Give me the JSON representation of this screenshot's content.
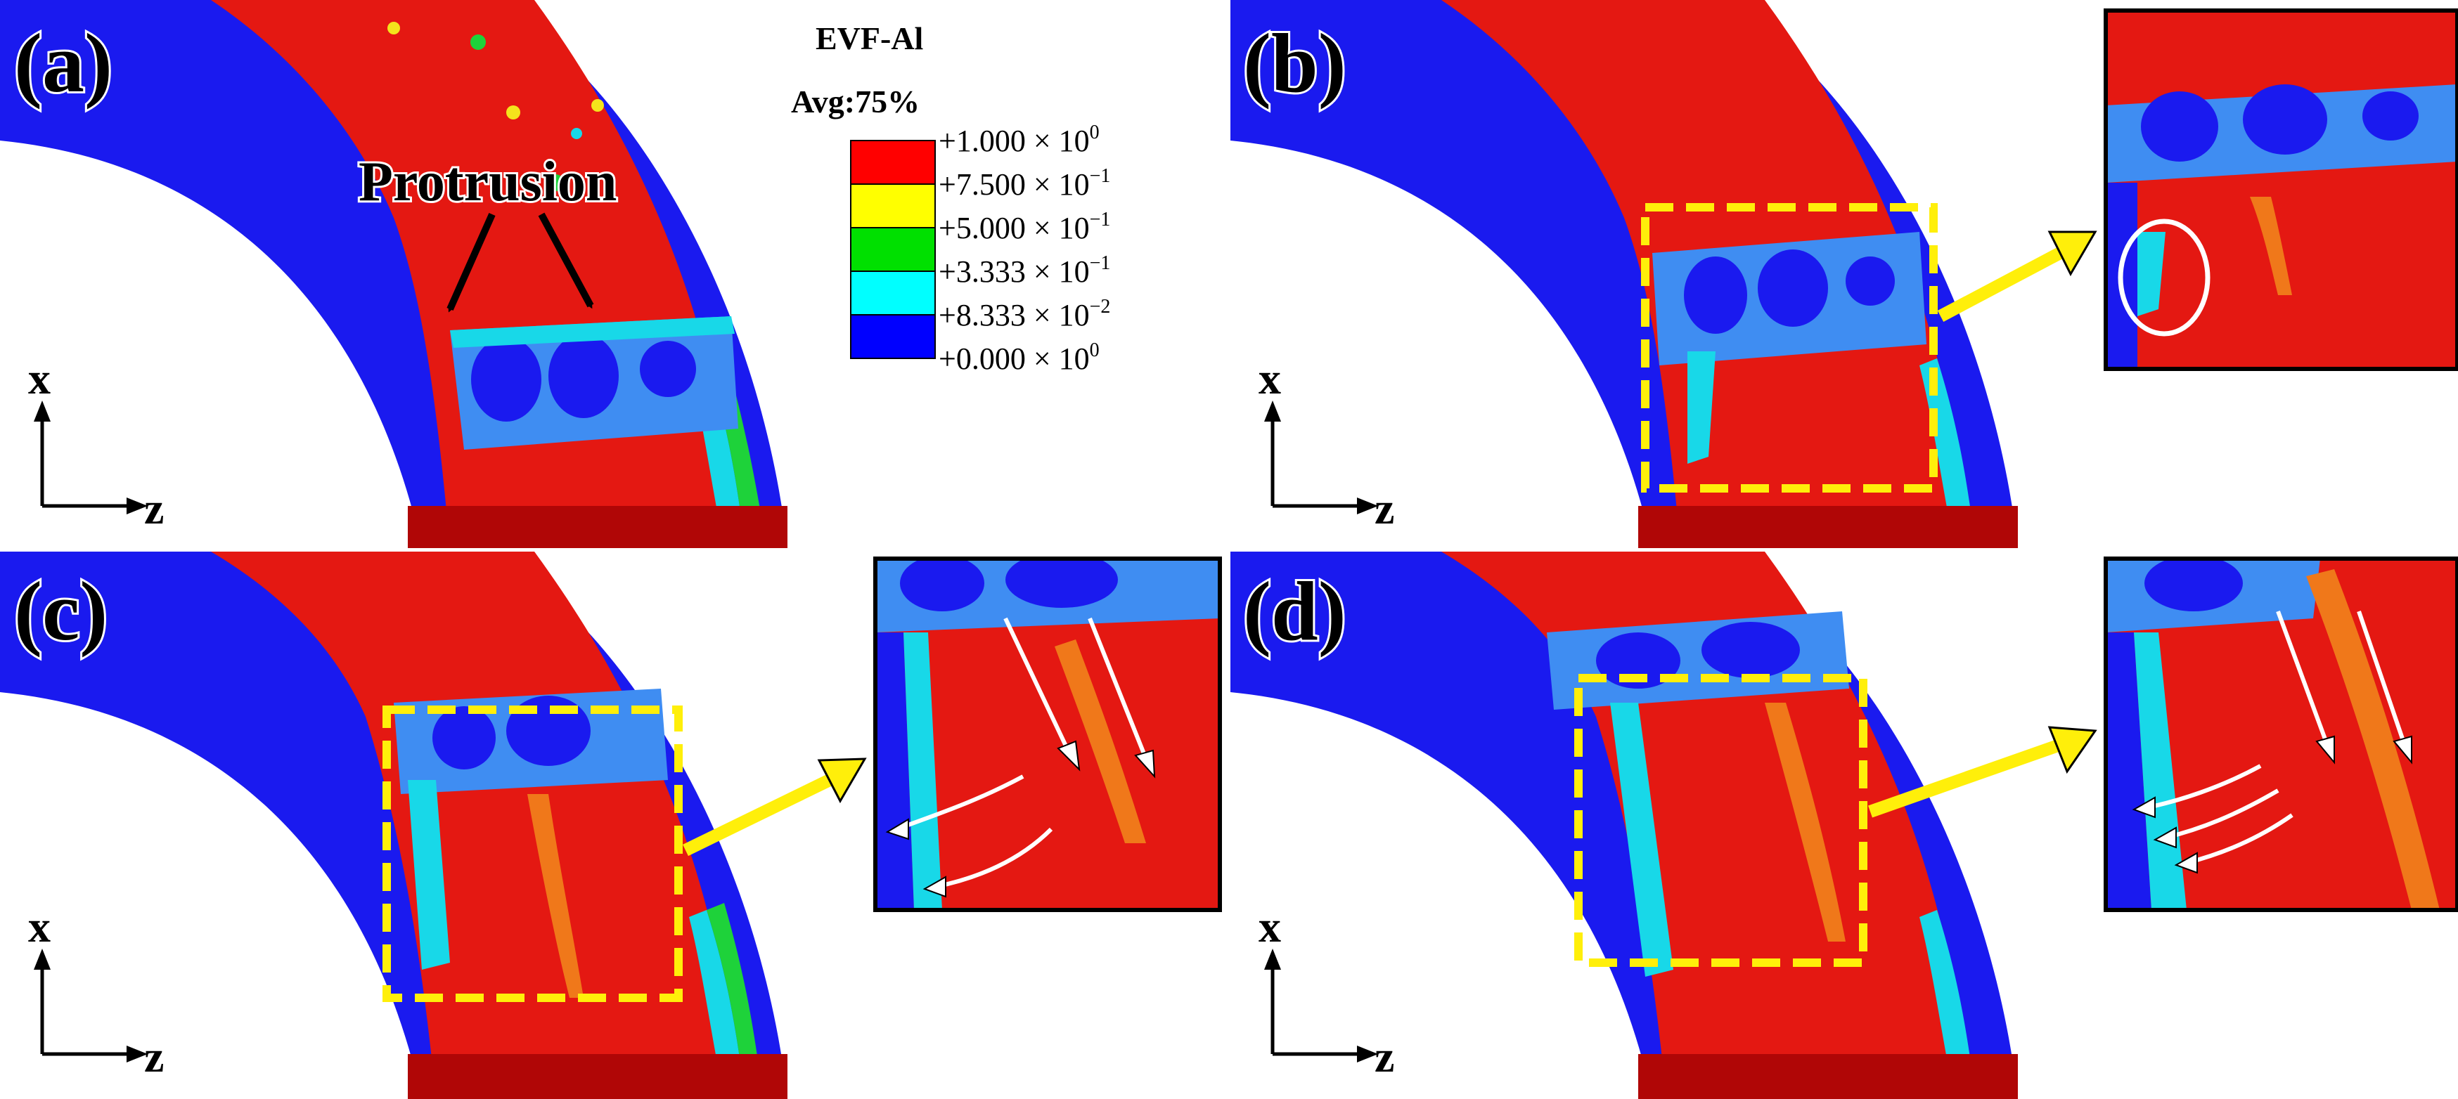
{
  "panels": [
    {
      "id": "a",
      "label": "(a)"
    },
    {
      "id": "b",
      "label": "(b)"
    },
    {
      "id": "c",
      "label": "(c)"
    },
    {
      "id": "d",
      "label": "(d)"
    }
  ],
  "axes": {
    "vertical": "x",
    "horizontal": "z"
  },
  "annotation": {
    "protrusion": "Protrusion"
  },
  "legend": {
    "title": "EVF-Al",
    "subtitle": "Avg:75%",
    "entries": [
      {
        "mantissa": "+1.000 × 10",
        "exponent": "0",
        "color": "#ff0000"
      },
      {
        "mantissa": "+7.500 × 10",
        "exponent": "−1",
        "color": "#ffff00"
      },
      {
        "mantissa": "+5.000 × 10",
        "exponent": "−1",
        "color": "#00e000"
      },
      {
        "mantissa": "+3.333 × 10",
        "exponent": "−1",
        "color": "#00ffff"
      },
      {
        "mantissa": "+8.333 × 10",
        "exponent": "−2",
        "color": "#0000ff"
      },
      {
        "mantissa": "+0.000 × 10",
        "exponent": "0",
        "color": "#0000ff"
      }
    ]
  },
  "colors": {
    "blue": "#1a1aef",
    "light_blue": "#3f8df2",
    "cyan": "#18d8e8",
    "green": "#1ed23a",
    "yellow": "#f4e41c",
    "orange": "#f0781a",
    "red": "#e41812",
    "dark_red": "#b00606",
    "highlight": "#ffef0a",
    "white_arrow": "#ffffff"
  }
}
